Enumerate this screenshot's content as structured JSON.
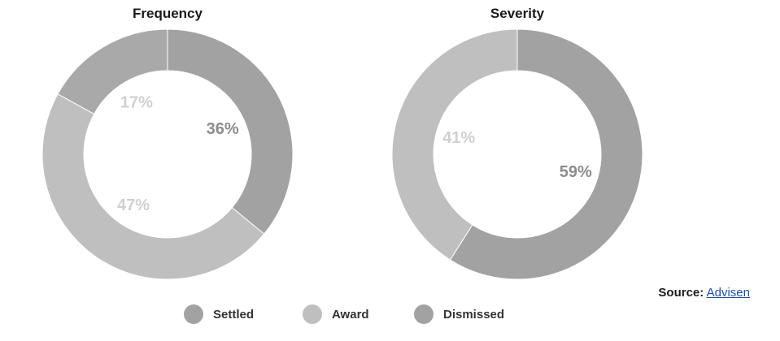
{
  "chart_data": [
    {
      "type": "donut",
      "title": "Frequency",
      "slices": [
        {
          "label": "Settled",
          "value": 36,
          "text": "36%"
        },
        {
          "label": "Award",
          "value": 47,
          "text": "47%"
        },
        {
          "label": "Dismissed",
          "value": 17,
          "text": "17%"
        }
      ]
    },
    {
      "type": "donut",
      "title": "Severity",
      "slices": [
        {
          "label": "Settled",
          "value": 59,
          "text": "59%"
        },
        {
          "label": "Award",
          "value": 41,
          "text": "41%"
        }
      ]
    }
  ],
  "legend": [
    {
      "label": "Settled",
      "color": "#a2a2a2"
    },
    {
      "label": "Award",
      "color": "#bfbfbf"
    },
    {
      "label": "Dismissed",
      "color": "#a2a2a2"
    }
  ],
  "colors": {
    "Settled": "#a2a2a2",
    "Award": "#bfbfbf",
    "Dismissed": "#a9a9a9",
    "Settled_label": "#8d8d8d",
    "Award_label": "#d0d0d0",
    "Dismissed_label": "#d0d0d0"
  },
  "source": {
    "label": "Source",
    "colon": ":",
    "link_text": "Advisen"
  }
}
